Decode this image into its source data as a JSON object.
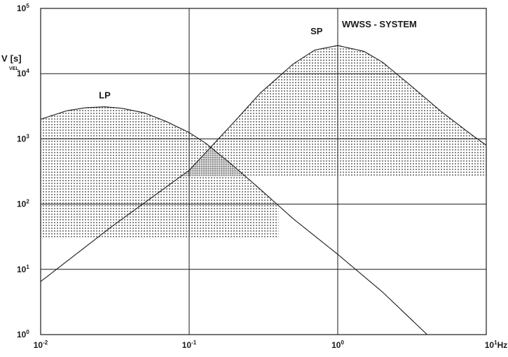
{
  "chart_data": {
    "type": "line",
    "title": "WWSS - SYSTEM",
    "x_scale": "log",
    "y_scale": "log",
    "xlim": [
      0.01,
      10
    ],
    "ylim": [
      1,
      100000
    ],
    "ylabel": "V",
    "ylabel_unit": "[s]",
    "ylabel_sub": "VEL",
    "x_unit_label": "Hz",
    "x_ticks": [
      {
        "value": 0.01,
        "base": "10",
        "exp": "-2"
      },
      {
        "value": 0.1,
        "base": "10",
        "exp": "-1"
      },
      {
        "value": 1,
        "base": "10",
        "exp": "0"
      },
      {
        "value": 10,
        "base": "10",
        "exp": "1"
      }
    ],
    "y_ticks": [
      {
        "value": 1,
        "base": "10",
        "exp": "0"
      },
      {
        "value": 10,
        "base": "10",
        "exp": "1"
      },
      {
        "value": 100,
        "base": "10",
        "exp": "2"
      },
      {
        "value": 1000,
        "base": "10",
        "exp": "3"
      },
      {
        "value": 10000,
        "base": "10",
        "exp": "4"
      },
      {
        "value": 100000,
        "base": "10",
        "exp": "5"
      }
    ],
    "grid": true,
    "series": [
      {
        "name": "LP",
        "label_at": [
          0.027,
          4200
        ],
        "x": [
          0.01,
          0.015,
          0.02,
          0.027,
          0.035,
          0.05,
          0.07,
          0.1,
          0.13,
          0.2,
          0.3,
          0.5,
          1,
          2,
          4
        ],
        "y": [
          2000,
          2700,
          3000,
          3100,
          2950,
          2500,
          1850,
          1250,
          850,
          380,
          170,
          60,
          17,
          4.5,
          1
        ],
        "shaded_band": {
          "y_floor": 30,
          "x_range": [
            0.01,
            0.4
          ]
        }
      },
      {
        "name": "SP",
        "label_at": [
          0.72,
          40000
        ],
        "x": [
          0.01,
          0.03,
          0.1,
          0.2,
          0.3,
          0.5,
          0.7,
          1,
          1.5,
          2,
          3,
          5,
          8,
          10
        ],
        "y": [
          6.5,
          45,
          330,
          1800,
          5000,
          14000,
          23000,
          27000,
          22000,
          15000,
          7000,
          2600,
          1150,
          800
        ],
        "shaded_band": {
          "y_floor": 270,
          "x_range": [
            0.08,
            10
          ]
        }
      }
    ],
    "overlap_region": {
      "x_range": [
        0.08,
        0.24
      ],
      "y_floor": 270
    }
  }
}
